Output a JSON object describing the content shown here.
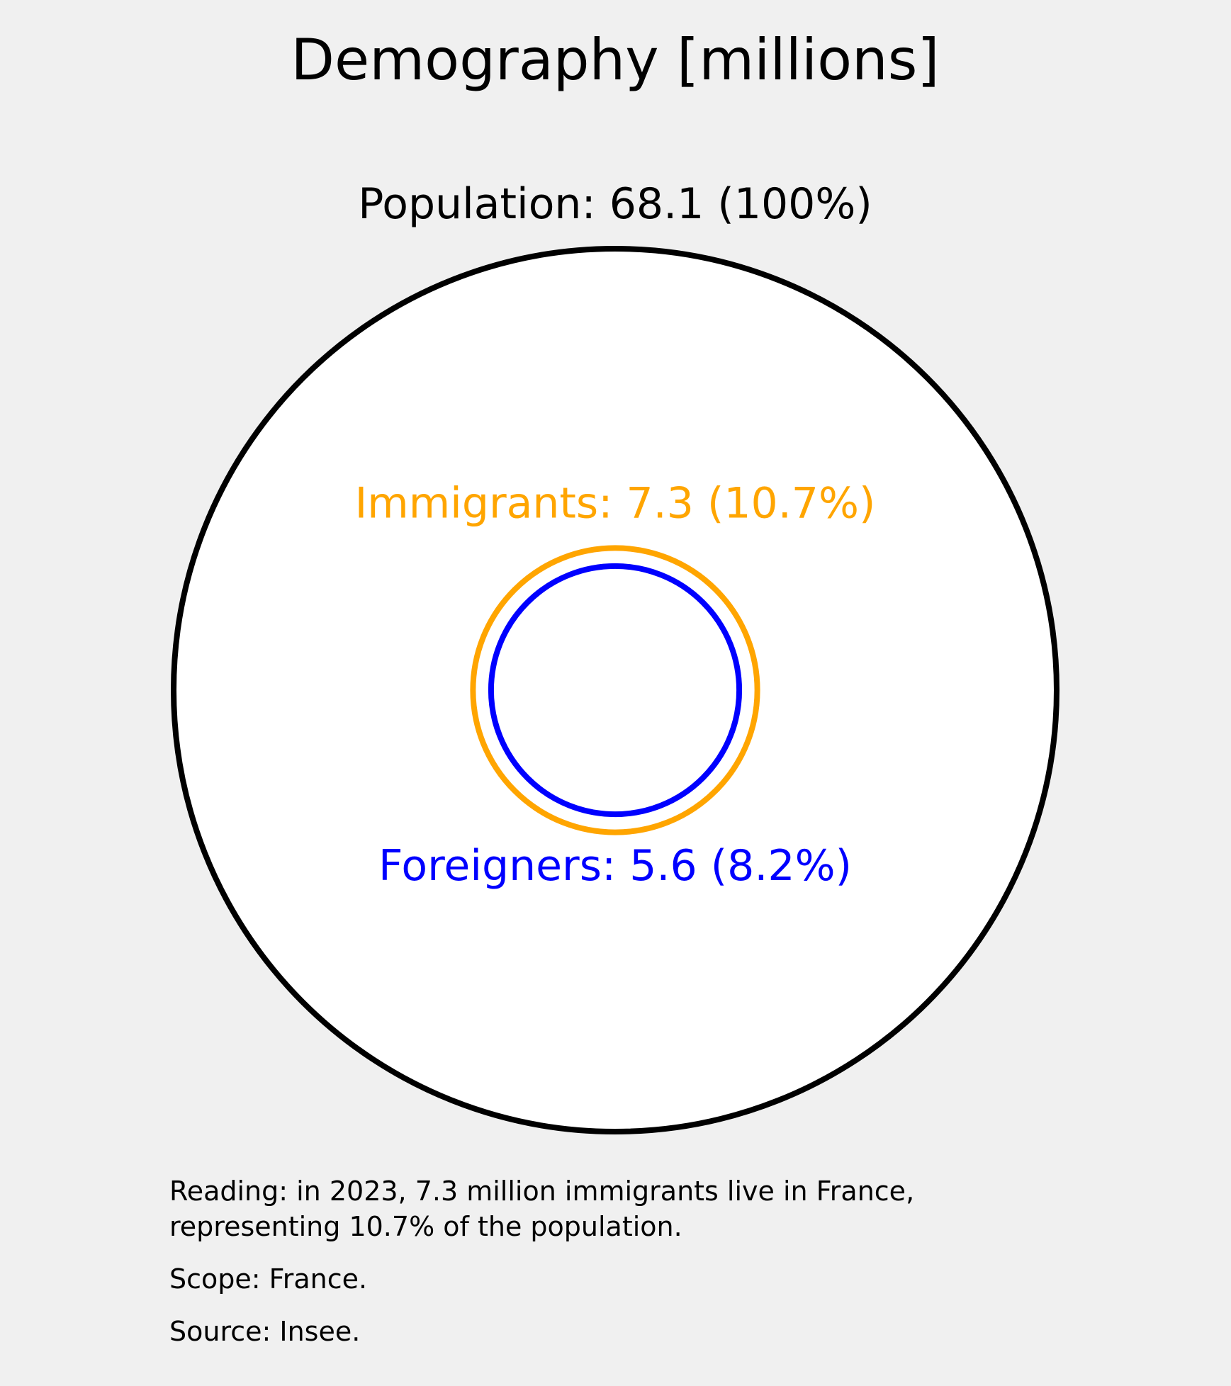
{
  "chart_data": {
    "type": "nested-circles",
    "title": "Demography [millions]",
    "unit": "millions",
    "series": [
      {
        "name": "Population",
        "value": 68.1,
        "percent": 100,
        "label": "Population: 68.1 (100%)",
        "color": "#000000"
      },
      {
        "name": "Immigrants",
        "value": 7.3,
        "percent": 10.7,
        "label": "Immigrants: 7.3 (10.7%)",
        "color": "#FFA500"
      },
      {
        "name": "Foreigners",
        "value": 5.6,
        "percent": 8.2,
        "label": "Foreigners: 5.6 (8.2%)",
        "color": "#0000FF"
      }
    ],
    "circle_fill": "#FFFFFF",
    "background": "#F0F0F0"
  },
  "notes": {
    "reading": "Reading: in 2023, 7.3 million immigrants live in France,\nrepresenting 10.7% of the population.",
    "scope": "Scope: France.",
    "source": "Source: Insee."
  }
}
